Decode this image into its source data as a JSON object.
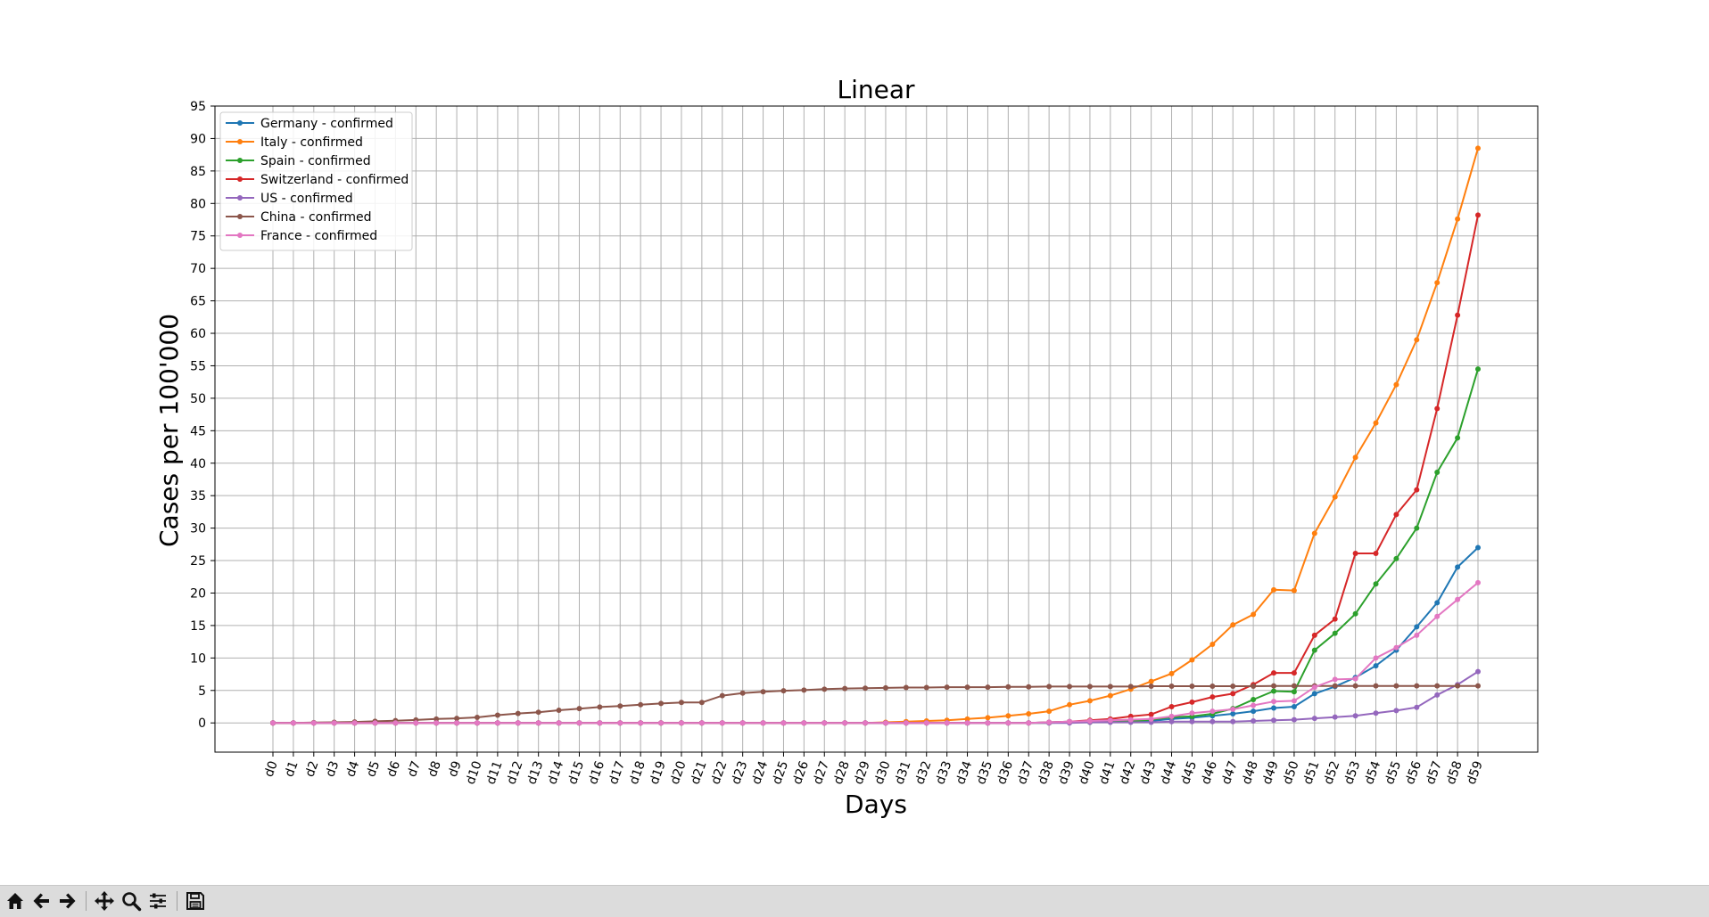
{
  "chart_data": {
    "type": "line",
    "title": "Linear",
    "xlabel": "Days",
    "ylabel": "Cases per 100'000",
    "ylim": [
      -4.5,
      95
    ],
    "yticks": [
      0,
      5,
      10,
      15,
      20,
      25,
      30,
      35,
      40,
      45,
      50,
      55,
      60,
      65,
      70,
      75,
      80,
      85,
      90,
      95
    ],
    "grid": true,
    "legend_position": "top-left",
    "categories": [
      "d0",
      "d1",
      "d2",
      "d3",
      "d4",
      "d5",
      "d6",
      "d7",
      "d8",
      "d9",
      "d10",
      "d11",
      "d12",
      "d13",
      "d14",
      "d15",
      "d16",
      "d17",
      "d18",
      "d19",
      "d20",
      "d21",
      "d22",
      "d23",
      "d24",
      "d25",
      "d26",
      "d27",
      "d28",
      "d29",
      "d30",
      "d31",
      "d32",
      "d33",
      "d34",
      "d35",
      "d36",
      "d37",
      "d38",
      "d39",
      "d40",
      "d41",
      "d42",
      "d43",
      "d44",
      "d45",
      "d46",
      "d47",
      "d48",
      "d49",
      "d50",
      "d51",
      "d52",
      "d53",
      "d54",
      "d55",
      "d56",
      "d57",
      "d58",
      "d59"
    ],
    "series": [
      {
        "name": "Germany - confirmed",
        "color": "#1f77b4",
        "values": [
          0,
          0,
          0,
          0,
          0,
          0,
          0,
          0,
          0,
          0,
          0,
          0,
          0,
          0,
          0,
          0,
          0,
          0,
          0,
          0,
          0,
          0,
          0,
          0,
          0,
          0,
          0,
          0,
          0,
          0,
          0,
          0,
          0,
          0,
          0,
          0,
          0,
          0,
          0.1,
          0.2,
          0.2,
          0.2,
          0.2,
          0.3,
          0.6,
          0.8,
          1.1,
          1.4,
          1.8,
          2.3,
          2.5,
          4.5,
          5.6,
          7.0,
          8.8,
          11.2,
          14.8,
          18.5,
          24.0,
          27.0
        ]
      },
      {
        "name": "Italy - confirmed",
        "color": "#ff7f0e",
        "values": [
          0,
          0,
          0,
          0,
          0,
          0,
          0,
          0,
          0,
          0,
          0,
          0,
          0,
          0,
          0,
          0,
          0,
          0,
          0,
          0,
          0,
          0,
          0,
          0,
          0,
          0,
          0,
          0,
          0,
          0,
          0.1,
          0.2,
          0.3,
          0.4,
          0.6,
          0.8,
          1.1,
          1.4,
          1.8,
          2.8,
          3.4,
          4.2,
          5.2,
          6.4,
          7.6,
          9.7,
          12.1,
          15.1,
          16.7,
          20.5,
          20.4,
          29.2,
          34.8,
          40.9,
          46.2,
          52.1,
          59.0,
          67.8,
          77.6,
          88.5
        ]
      },
      {
        "name": "Spain - confirmed",
        "color": "#2ca02c",
        "values": [
          0,
          0,
          0,
          0,
          0,
          0,
          0,
          0,
          0,
          0,
          0,
          0,
          0,
          0,
          0,
          0,
          0,
          0,
          0,
          0,
          0,
          0,
          0,
          0,
          0,
          0,
          0,
          0,
          0,
          0,
          0,
          0,
          0,
          0,
          0,
          0,
          0,
          0,
          0,
          0.1,
          0.1,
          0.2,
          0.3,
          0.5,
          0.9,
          1.0,
          1.4,
          2.2,
          3.6,
          4.9,
          4.8,
          11.2,
          13.8,
          16.8,
          21.4,
          25.3,
          30.0,
          38.6,
          43.9,
          54.5
        ]
      },
      {
        "name": "Switzerland - confirmed",
        "color": "#d62728",
        "values": [
          0,
          0,
          0,
          0,
          0,
          0,
          0,
          0,
          0,
          0,
          0,
          0,
          0,
          0,
          0,
          0,
          0,
          0,
          0,
          0,
          0,
          0,
          0,
          0,
          0,
          0,
          0,
          0,
          0,
          0,
          0,
          0,
          0,
          0,
          0,
          0,
          0,
          0,
          0.1,
          0.2,
          0.4,
          0.6,
          1.0,
          1.3,
          2.5,
          3.2,
          4.0,
          4.5,
          5.9,
          7.7,
          7.7,
          13.5,
          16.0,
          26.1,
          26.1,
          32.1,
          35.9,
          48.4,
          62.8,
          78.2
        ]
      },
      {
        "name": "US - confirmed",
        "color": "#9467bd",
        "values": [
          0,
          0,
          0,
          0,
          0,
          0,
          0,
          0,
          0,
          0,
          0,
          0,
          0,
          0,
          0,
          0,
          0,
          0,
          0,
          0,
          0,
          0,
          0,
          0,
          0,
          0,
          0,
          0,
          0,
          0,
          0,
          0,
          0,
          0,
          0,
          0,
          0,
          0,
          0,
          0,
          0.1,
          0.1,
          0.1,
          0.1,
          0.2,
          0.2,
          0.2,
          0.2,
          0.3,
          0.4,
          0.5,
          0.7,
          0.9,
          1.1,
          1.5,
          1.9,
          2.4,
          4.3,
          5.9,
          7.9
        ]
      },
      {
        "name": "China - confirmed",
        "color": "#8c564b",
        "values": [
          0,
          0,
          0.05,
          0.1,
          0.15,
          0.25,
          0.35,
          0.45,
          0.6,
          0.7,
          0.85,
          1.2,
          1.45,
          1.65,
          1.95,
          2.2,
          2.45,
          2.6,
          2.8,
          3.0,
          3.15,
          3.15,
          4.2,
          4.6,
          4.8,
          4.95,
          5.05,
          5.2,
          5.3,
          5.35,
          5.4,
          5.45,
          5.45,
          5.5,
          5.5,
          5.5,
          5.55,
          5.55,
          5.6,
          5.6,
          5.6,
          5.6,
          5.6,
          5.65,
          5.65,
          5.65,
          5.65,
          5.65,
          5.65,
          5.7,
          5.7,
          5.7,
          5.7,
          5.7,
          5.7,
          5.7,
          5.7,
          5.7,
          5.7,
          5.7
        ]
      },
      {
        "name": "France - confirmed",
        "color": "#e377c2",
        "values": [
          0,
          0,
          0,
          0,
          0,
          0,
          0,
          0,
          0,
          0,
          0,
          0,
          0,
          0,
          0,
          0,
          0,
          0,
          0,
          0,
          0,
          0,
          0,
          0,
          0,
          0,
          0,
          0,
          0,
          0,
          0,
          0,
          0,
          0,
          0,
          0,
          0,
          0,
          0.1,
          0.2,
          0.3,
          0.4,
          0.5,
          0.6,
          1.0,
          1.5,
          1.8,
          2.1,
          2.7,
          3.3,
          3.4,
          5.5,
          6.7,
          6.8,
          10.0,
          11.6,
          13.5,
          16.4,
          19.0,
          21.6
        ]
      }
    ]
  },
  "toolbar": {
    "buttons": [
      {
        "name": "home-icon",
        "label": "Home"
      },
      {
        "name": "back-arrow-icon",
        "label": "Back"
      },
      {
        "name": "forward-arrow-icon",
        "label": "Forward"
      },
      {
        "name": "pan-icon",
        "label": "Pan"
      },
      {
        "name": "zoom-icon",
        "label": "Zoom"
      },
      {
        "name": "configure-subplots-icon",
        "label": "Configure subplots"
      },
      {
        "name": "save-icon",
        "label": "Save"
      }
    ]
  }
}
